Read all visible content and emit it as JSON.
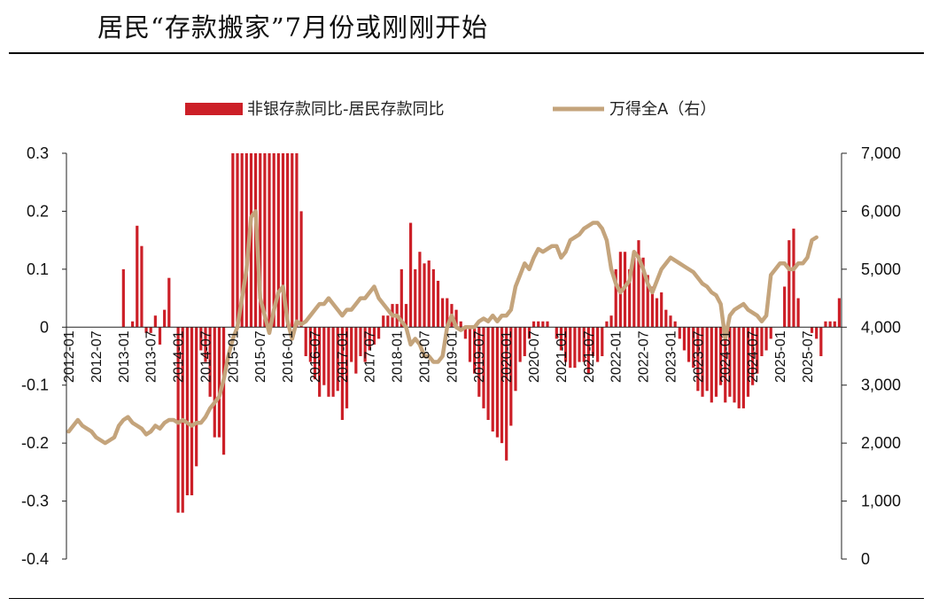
{
  "page": {
    "title": "居民“存款搬家”7月份或刚刚开始"
  },
  "chart_data": {
    "type": "bar+line",
    "legend": {
      "bar_label": "非银存款同比-居民存款同比",
      "line_label": "万得全A（右）",
      "placement": "top"
    },
    "colors": {
      "bar": "#cc1f27",
      "line": "#c4a47c"
    },
    "left_axis": {
      "ylim": [
        -0.4,
        0.3
      ],
      "ticks": [
        "0.3",
        "0.2",
        "0.1",
        "0",
        "-0.1",
        "-0.2",
        "-0.3",
        "-0.4"
      ]
    },
    "right_axis": {
      "ylim": [
        0,
        7000
      ],
      "ticks": [
        "7,000",
        "6,000",
        "5,000",
        "4,000",
        "3,000",
        "2,000",
        "1,000",
        "0"
      ]
    },
    "x_ticks": [
      "2012-01",
      "2012-07",
      "2013-01",
      "2013-07",
      "2014-01",
      "2014-07",
      "2015-01",
      "2015-07",
      "2016-01",
      "2016-07",
      "2017-01",
      "2017-07",
      "2018-01",
      "2018-07",
      "2019-01",
      "2019-07",
      "2020-01",
      "2020-07",
      "2021-01",
      "2021-07",
      "2022-01",
      "2022-07",
      "2023-01",
      "2023-07",
      "2024-01",
      "2024-07",
      "2025-01",
      "2025-07"
    ],
    "start": "2012-01",
    "bar_values": [
      0,
      0,
      0,
      0,
      0,
      0,
      0,
      0,
      0,
      0,
      0,
      0,
      0.1,
      0,
      0.01,
      0.175,
      0.14,
      -0.01,
      -0.01,
      0.02,
      -0.03,
      0.03,
      0.085,
      0,
      -0.32,
      -0.32,
      -0.29,
      -0.29,
      -0.24,
      -0.04,
      -0.06,
      -0.12,
      -0.19,
      -0.19,
      -0.22,
      0,
      0.3,
      0.3,
      0.3,
      0.3,
      0.3,
      0.3,
      0.3,
      0.3,
      0.3,
      0.3,
      0.3,
      0.3,
      0.3,
      0.3,
      0.3,
      0.2,
      -0.05,
      -0.06,
      -0.09,
      -0.12,
      -0.1,
      -0.12,
      -0.12,
      -0.11,
      -0.16,
      -0.14,
      -0.06,
      -0.08,
      -0.05,
      -0.06,
      -0.04,
      -0.03,
      -0.02,
      0.02,
      0.02,
      0.04,
      0.04,
      0.1,
      0.04,
      0.18,
      0.1,
      0.13,
      0.11,
      0.115,
      0.1,
      0.08,
      0.05,
      0.05,
      0.04,
      0.03,
      0.01,
      -0.02,
      -0.06,
      -0.08,
      -0.12,
      -0.14,
      -0.16,
      -0.18,
      -0.19,
      -0.2,
      -0.23,
      -0.17,
      -0.11,
      -0.06,
      -0.05,
      -0.02,
      0.01,
      0.01,
      0.01,
      0.01,
      0,
      -0.02,
      -0.04,
      -0.06,
      -0.07,
      -0.07,
      -0.06,
      -0.06,
      -0.08,
      -0.05,
      -0.06,
      -0.05,
      0.01,
      0.02,
      0.1,
      0.13,
      0.13,
      0.1,
      0.12,
      0.15,
      0.12,
      0.09,
      0.07,
      0.05,
      0.06,
      0.03,
      0.02,
      0.01,
      -0.02,
      -0.04,
      -0.06,
      -0.07,
      -0.11,
      -0.12,
      -0.11,
      -0.13,
      -0.12,
      -0.1,
      -0.13,
      -0.12,
      -0.13,
      -0.14,
      -0.14,
      -0.12,
      -0.1,
      -0.08,
      -0.05,
      -0.04,
      -0.02,
      0,
      0,
      0.07,
      0.15,
      0.17,
      0.05,
      0,
      0,
      -0.01,
      -0.02,
      -0.05,
      0.01,
      0.01,
      0.01,
      0.05
    ],
    "line_values": [
      2200,
      2300,
      2400,
      2300,
      2250,
      2200,
      2100,
      2050,
      2000,
      2050,
      2100,
      2300,
      2400,
      2450,
      2350,
      2300,
      2250,
      2150,
      2200,
      2300,
      2250,
      2350,
      2400,
      2400,
      2350,
      2400,
      2350,
      2300,
      2350,
      2350,
      2450,
      2600,
      2700,
      2800,
      3100,
      3500,
      3800,
      4000,
      4500,
      5000,
      5900,
      6000,
      4500,
      4200,
      3900,
      4300,
      4600,
      4700,
      4100,
      3800,
      4100,
      4050,
      4100,
      4200,
      4300,
      4400,
      4400,
      4500,
      4400,
      4300,
      4200,
      4300,
      4300,
      4400,
      4500,
      4500,
      4600,
      4700,
      4500,
      4400,
      4300,
      4200,
      4200,
      4100,
      4000,
      3700,
      3800,
      3700,
      3500,
      3500,
      3400,
      3400,
      3500,
      4000,
      4200,
      4000,
      3950,
      4000,
      4000,
      4000,
      4100,
      4150,
      4100,
      4200,
      4100,
      4200,
      4200,
      4300,
      4700,
      4900,
      5100,
      5000,
      5200,
      5350,
      5300,
      5350,
      5400,
      5400,
      5200,
      5300,
      5500,
      5550,
      5600,
      5700,
      5750,
      5800,
      5800,
      5700,
      5500,
      5000,
      4750,
      4600,
      4700,
      4800,
      5300,
      5200,
      5000,
      4750,
      4600,
      4800,
      5000,
      5100,
      5200,
      5150,
      5100,
      5050,
      5000,
      4950,
      4850,
      4750,
      4700,
      4600,
      4550,
      4400,
      3800,
      4200,
      4300,
      4350,
      4400,
      4300,
      4250,
      4200,
      4100,
      4200,
      4900,
      5000,
      5100,
      5100,
      5000,
      5000,
      5100,
      5100,
      5200,
      5500,
      5550
    ]
  }
}
